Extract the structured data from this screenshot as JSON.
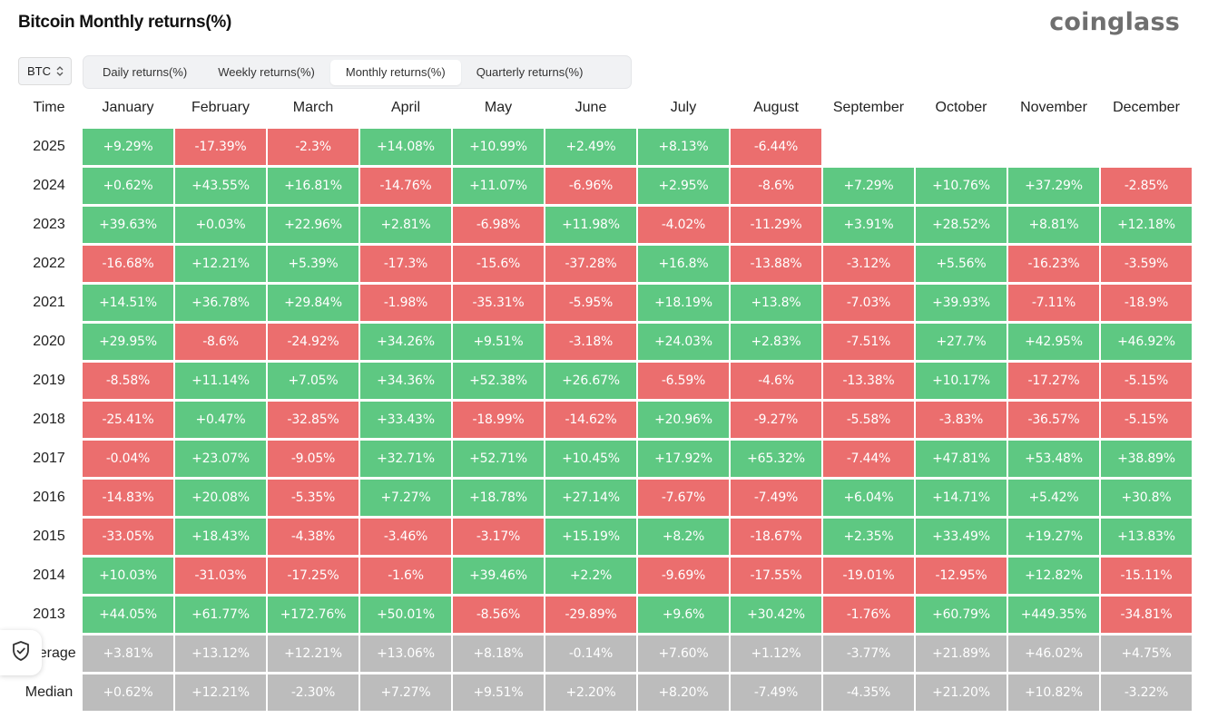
{
  "page": {
    "title": "Bitcoin Monthly returns(%)",
    "brand": "coinglass"
  },
  "asset_select": {
    "value": "BTC"
  },
  "tabs": [
    {
      "label": "Daily returns(%)",
      "active": false
    },
    {
      "label": "Weekly returns(%)",
      "active": false
    },
    {
      "label": "Monthly returns(%)",
      "active": true
    },
    {
      "label": "Quarterly returns(%)",
      "active": false
    }
  ],
  "colors": {
    "positive": "#5ec882",
    "negative": "#eb6e6e",
    "summary": "#bcbcbc"
  },
  "chart_data": {
    "type": "heatmap",
    "corner_label": "Time",
    "columns": [
      "January",
      "February",
      "March",
      "April",
      "May",
      "June",
      "July",
      "August",
      "September",
      "October",
      "November",
      "December"
    ],
    "rows": [
      {
        "label": "2025",
        "values": [
          "+9.29%",
          "-17.39%",
          "-2.3%",
          "+14.08%",
          "+10.99%",
          "+2.49%",
          "+8.13%",
          "-6.44%",
          null,
          null,
          null,
          null
        ]
      },
      {
        "label": "2024",
        "values": [
          "+0.62%",
          "+43.55%",
          "+16.81%",
          "-14.76%",
          "+11.07%",
          "-6.96%",
          "+2.95%",
          "-8.6%",
          "+7.29%",
          "+10.76%",
          "+37.29%",
          "-2.85%"
        ]
      },
      {
        "label": "2023",
        "values": [
          "+39.63%",
          "+0.03%",
          "+22.96%",
          "+2.81%",
          "-6.98%",
          "+11.98%",
          "-4.02%",
          "-11.29%",
          "+3.91%",
          "+28.52%",
          "+8.81%",
          "+12.18%"
        ]
      },
      {
        "label": "2022",
        "values": [
          "-16.68%",
          "+12.21%",
          "+5.39%",
          "-17.3%",
          "-15.6%",
          "-37.28%",
          "+16.8%",
          "-13.88%",
          "-3.12%",
          "+5.56%",
          "-16.23%",
          "-3.59%"
        ]
      },
      {
        "label": "2021",
        "values": [
          "+14.51%",
          "+36.78%",
          "+29.84%",
          "-1.98%",
          "-35.31%",
          "-5.95%",
          "+18.19%",
          "+13.8%",
          "-7.03%",
          "+39.93%",
          "-7.11%",
          "-18.9%"
        ]
      },
      {
        "label": "2020",
        "values": [
          "+29.95%",
          "-8.6%",
          "-24.92%",
          "+34.26%",
          "+9.51%",
          "-3.18%",
          "+24.03%",
          "+2.83%",
          "-7.51%",
          "+27.7%",
          "+42.95%",
          "+46.92%"
        ]
      },
      {
        "label": "2019",
        "values": [
          "-8.58%",
          "+11.14%",
          "+7.05%",
          "+34.36%",
          "+52.38%",
          "+26.67%",
          "-6.59%",
          "-4.6%",
          "-13.38%",
          "+10.17%",
          "-17.27%",
          "-5.15%"
        ]
      },
      {
        "label": "2018",
        "values": [
          "-25.41%",
          "+0.47%",
          "-32.85%",
          "+33.43%",
          "-18.99%",
          "-14.62%",
          "+20.96%",
          "-9.27%",
          "-5.58%",
          "-3.83%",
          "-36.57%",
          "-5.15%"
        ]
      },
      {
        "label": "2017",
        "values": [
          "-0.04%",
          "+23.07%",
          "-9.05%",
          "+32.71%",
          "+52.71%",
          "+10.45%",
          "+17.92%",
          "+65.32%",
          "-7.44%",
          "+47.81%",
          "+53.48%",
          "+38.89%"
        ]
      },
      {
        "label": "2016",
        "values": [
          "-14.83%",
          "+20.08%",
          "-5.35%",
          "+7.27%",
          "+18.78%",
          "+27.14%",
          "-7.67%",
          "-7.49%",
          "+6.04%",
          "+14.71%",
          "+5.42%",
          "+30.8%"
        ]
      },
      {
        "label": "2015",
        "values": [
          "-33.05%",
          "+18.43%",
          "-4.38%",
          "-3.46%",
          "-3.17%",
          "+15.19%",
          "+8.2%",
          "-18.67%",
          "+2.35%",
          "+33.49%",
          "+19.27%",
          "+13.83%"
        ]
      },
      {
        "label": "2014",
        "values": [
          "+10.03%",
          "-31.03%",
          "-17.25%",
          "-1.6%",
          "+39.46%",
          "+2.2%",
          "-9.69%",
          "-17.55%",
          "-19.01%",
          "-12.95%",
          "+12.82%",
          "-15.11%"
        ]
      },
      {
        "label": "2013",
        "values": [
          "+44.05%",
          "+61.77%",
          "+172.76%",
          "+50.01%",
          "-8.56%",
          "-29.89%",
          "+9.6%",
          "+30.42%",
          "-1.76%",
          "+60.79%",
          "+449.35%",
          "-34.81%"
        ]
      },
      {
        "label": "Average",
        "summary": true,
        "values": [
          "+3.81%",
          "+13.12%",
          "+12.21%",
          "+13.06%",
          "+8.18%",
          "-0.14%",
          "+7.60%",
          "+1.12%",
          "-3.77%",
          "+21.89%",
          "+46.02%",
          "+4.75%"
        ]
      },
      {
        "label": "Median",
        "summary": true,
        "values": [
          "+0.62%",
          "+12.21%",
          "-2.30%",
          "+7.27%",
          "+9.51%",
          "+2.20%",
          "+8.20%",
          "-7.49%",
          "-4.35%",
          "+21.20%",
          "+10.82%",
          "-3.22%"
        ]
      }
    ]
  }
}
